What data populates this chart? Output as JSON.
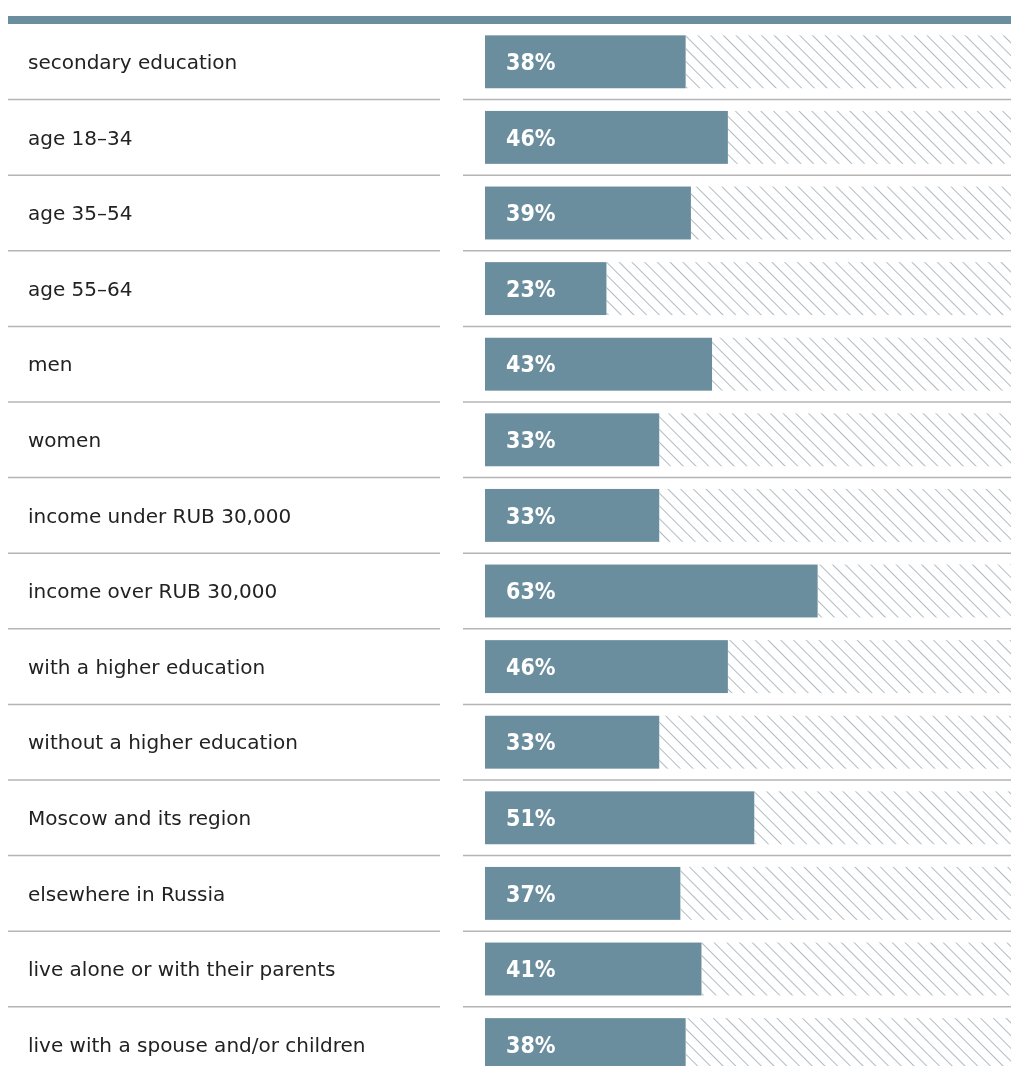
{
  "chart_data": {
    "type": "bar",
    "orientation": "horizontal",
    "stacked": true,
    "categories": [
      "secondary education",
      "age 18–34",
      "age 35–54",
      "age 55–64",
      "men",
      "women",
      "income under RUB 30,000",
      "income over RUB 30,000",
      "with a higher education",
      "without a higher education",
      "Moscow and its region",
      "elsewhere in Russia",
      "live alone or with their parents",
      "live with a spouse and/or children"
    ],
    "series": [
      {
        "color": "#6b8e9e",
        "values": [
          38,
          46,
          39,
          23,
          43,
          33,
          33,
          63,
          46,
          33,
          51,
          37,
          41,
          38
        ],
        "value_labels": [
          "38%",
          "46%",
          "39%",
          "23%",
          "43%",
          "33%",
          "33%",
          "63%",
          "46%",
          "33%",
          "51%",
          "37%",
          "41%",
          "38%"
        ]
      },
      {
        "color": "#9aabb5",
        "values": [
          62,
          54,
          61,
          77,
          57,
          67,
          67,
          37,
          54,
          67,
          49,
          63,
          59,
          62
        ]
      }
    ],
    "xlim": [
      0,
      100
    ]
  }
}
